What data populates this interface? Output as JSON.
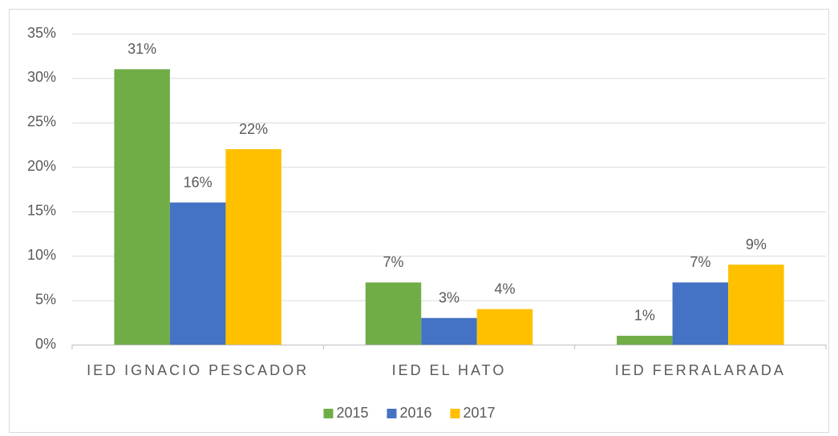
{
  "chart_data": {
    "type": "bar",
    "categories": [
      "IED IGNACIO PESCADOR",
      "IED EL HATO",
      "IED FERRALARADA"
    ],
    "series": [
      {
        "name": "2015",
        "color": "#70ad47",
        "values": [
          31,
          7,
          1
        ],
        "value_labels": [
          "31%",
          "7%",
          "1%"
        ]
      },
      {
        "name": "2016",
        "color": "#4472c4",
        "values": [
          16,
          3,
          7
        ],
        "value_labels": [
          "16%",
          "3%",
          "7%"
        ]
      },
      {
        "name": "2017",
        "color": "#ffc000",
        "values": [
          22,
          4,
          9
        ],
        "value_labels": [
          "22%",
          "4%",
          "9%"
        ]
      }
    ],
    "ylim": [
      0,
      35
    ],
    "yticks": [
      {
        "value": 0,
        "label": "0%"
      },
      {
        "value": 5,
        "label": "5%"
      },
      {
        "value": 10,
        "label": "10%"
      },
      {
        "value": 15,
        "label": "15%"
      },
      {
        "value": 20,
        "label": "20%"
      },
      {
        "value": 25,
        "label": "25%"
      },
      {
        "value": 30,
        "label": "30%"
      },
      {
        "value": 35,
        "label": "35%"
      }
    ],
    "grid": true,
    "legend": "bottom"
  }
}
